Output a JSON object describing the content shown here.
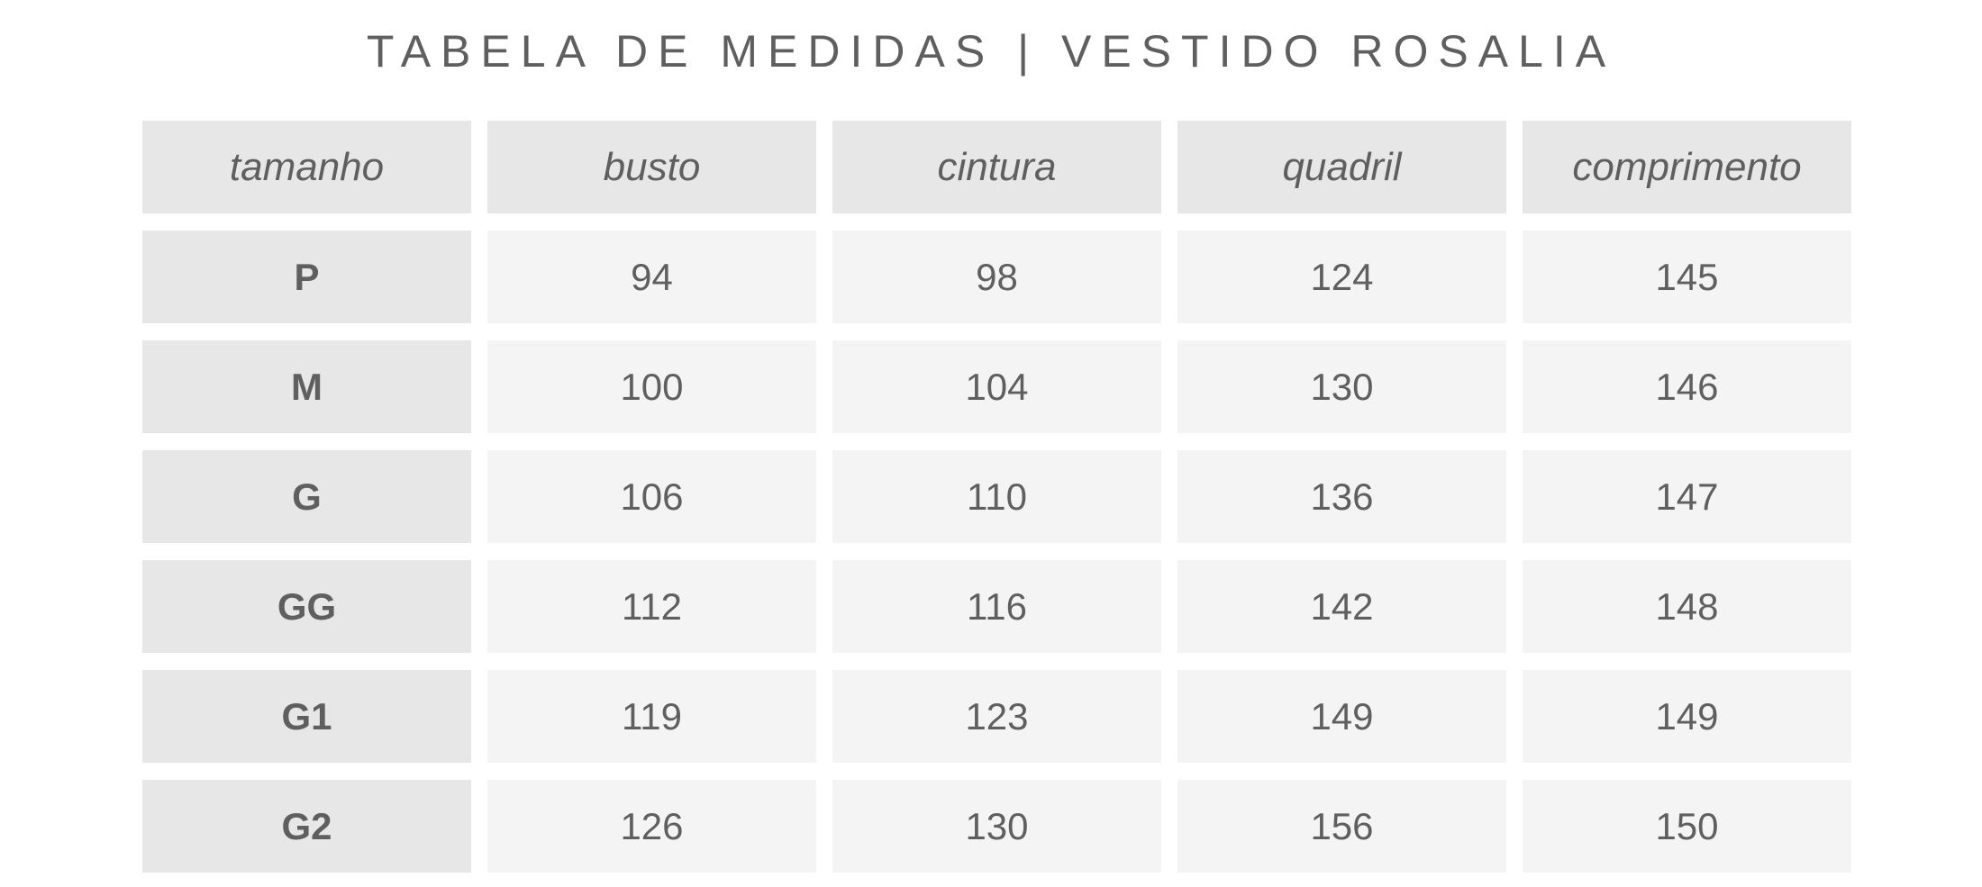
{
  "title": "TABELA DE MEDIDAS | VESTIDO ROSALIA",
  "table": {
    "headers": [
      "tamanho",
      "busto",
      "cintura",
      "quadril",
      "comprimento"
    ],
    "rows": [
      [
        "P",
        "94",
        "98",
        "124",
        "145"
      ],
      [
        "M",
        "100",
        "104",
        "130",
        "146"
      ],
      [
        "G",
        "106",
        "110",
        "136",
        "147"
      ],
      [
        "GG",
        "112",
        "116",
        "142",
        "148"
      ],
      [
        "G1",
        "119",
        "123",
        "149",
        "149"
      ],
      [
        "G2",
        "126",
        "130",
        "156",
        "150"
      ]
    ]
  },
  "colors": {
    "text": "#5f5f5f",
    "header_bg": "#e7e7e7",
    "cell_bg": "#f4f4f4"
  }
}
